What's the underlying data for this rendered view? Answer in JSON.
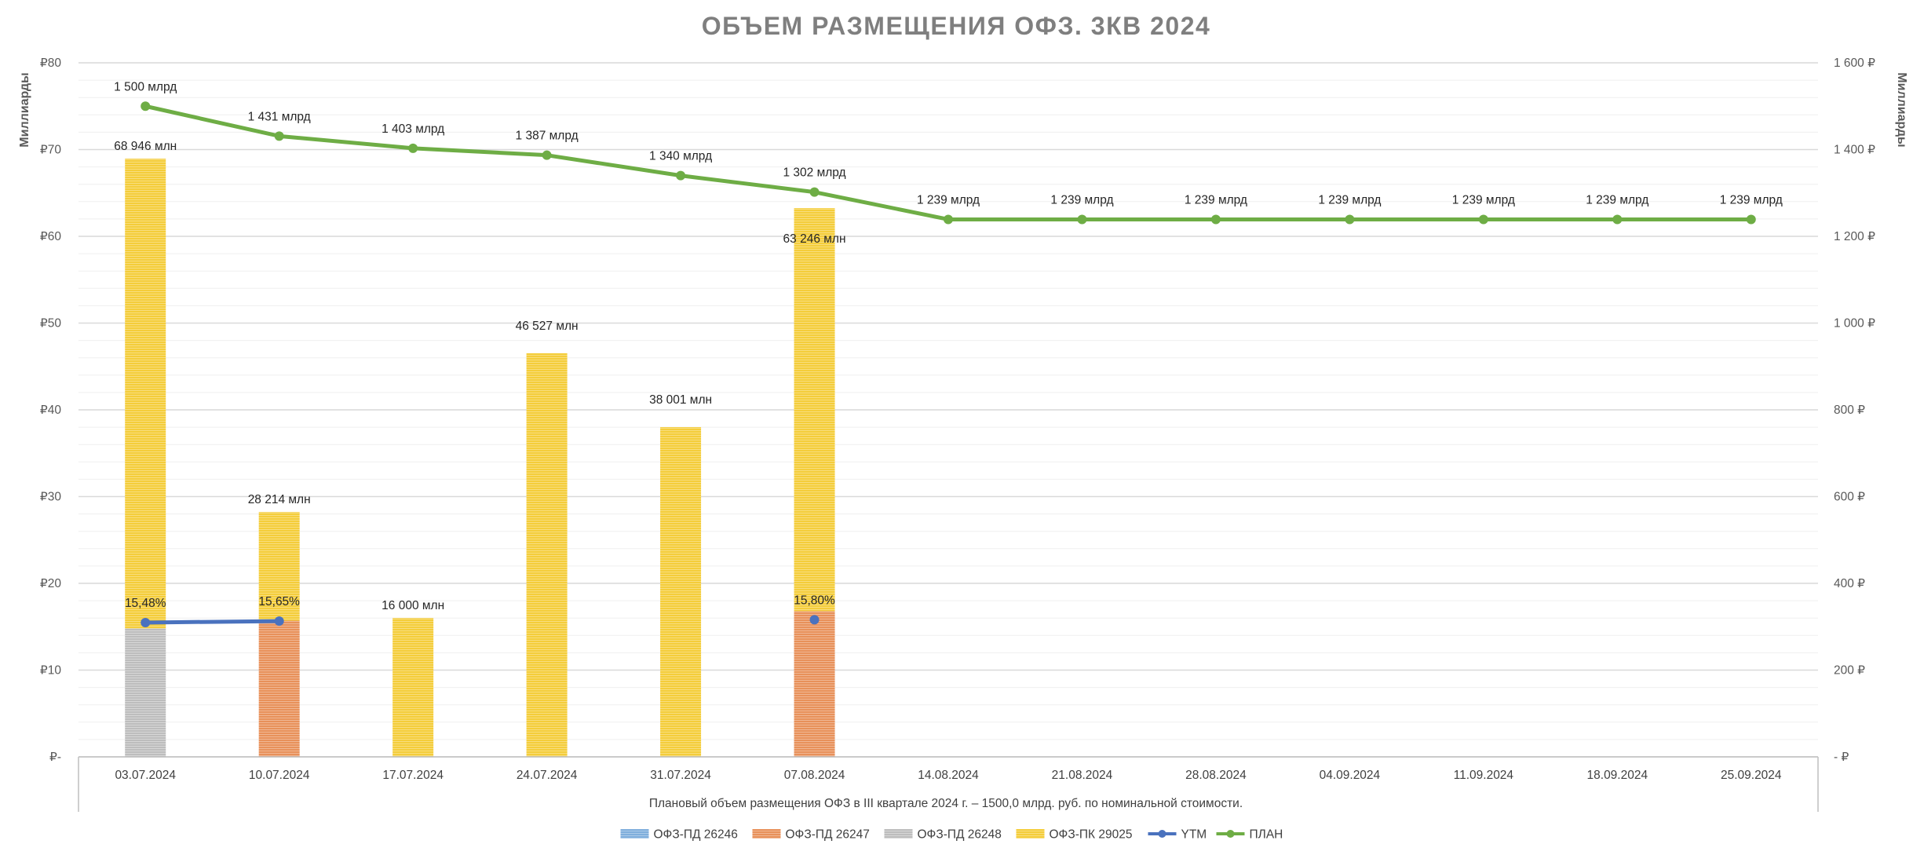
{
  "colors": {
    "pd26246": "#7FAEDC",
    "pd26247": "#E8915A",
    "pd26248": "#BDBDBD",
    "pk29025": "#F4CD3A",
    "ytm": "#4A72BE",
    "plan": "#6EAD45",
    "grid": "#D9D9D9",
    "minor_grid": "#EFEFEF",
    "axis_text": "#595959",
    "title": "#7F7F7F"
  },
  "chart_data": {
    "type": "bar",
    "stacked": true,
    "title": "ОБЪЕМ РАЗМЕЩЕНИЯ ОФЗ. 3КВ 2024",
    "ylabel_left": "Миллиарды",
    "ylabel_right": "Миллиарды",
    "xlabel": "Плановый объем размещения ОФЗ в III квартале 2024 г. – 1500,0 млрд. руб. по номинальной стоимости.",
    "ylim_left": [
      0,
      80
    ],
    "ylim_right": [
      0,
      1600
    ],
    "left_ticks": [
      0,
      10,
      20,
      30,
      40,
      50,
      60,
      70,
      80
    ],
    "left_tick_labels": [
      "₽-",
      "₽10",
      "₽20",
      "₽30",
      "₽40",
      "₽50",
      "₽60",
      "₽70",
      "₽80"
    ],
    "right_ticks": [
      0,
      200,
      400,
      600,
      800,
      1000,
      1200,
      1400,
      1600
    ],
    "right_tick_labels": [
      "-  ₽",
      "200 ₽",
      "400 ₽",
      "600 ₽",
      "800 ₽",
      "1 000 ₽",
      "1 200 ₽",
      "1 400 ₽",
      "1 600 ₽"
    ],
    "grid": true,
    "legend_position": "bottom",
    "categories": [
      "03.07.2024",
      "10.07.2024",
      "17.07.2024",
      "24.07.2024",
      "31.07.2024",
      "07.08.2024",
      "14.08.2024",
      "21.08.2024",
      "28.08.2024",
      "04.09.2024",
      "11.09.2024",
      "18.09.2024",
      "25.09.2024"
    ],
    "series": [
      {
        "name": "ОФЗ-ПД 26246",
        "kind": "bar",
        "color_key": "pd26246",
        "values": [
          0,
          0,
          0,
          0,
          0,
          0,
          null,
          null,
          null,
          null,
          null,
          null,
          null
        ]
      },
      {
        "name": "ОФЗ-ПД 26247",
        "kind": "bar",
        "color_key": "pd26247",
        "values": [
          0,
          15.7,
          0,
          0,
          0,
          16.8,
          null,
          null,
          null,
          null,
          null,
          null,
          null
        ]
      },
      {
        "name": "ОФЗ-ПД 26248",
        "kind": "bar",
        "color_key": "pd26248",
        "values": [
          14.8,
          0,
          0,
          0,
          0,
          0,
          null,
          null,
          null,
          null,
          null,
          null,
          null
        ]
      },
      {
        "name": "ОФЗ-ПК 29025",
        "kind": "bar",
        "color_key": "pk29025",
        "values": [
          54.146,
          12.514,
          16.0,
          46.527,
          38.001,
          46.446,
          null,
          null,
          null,
          null,
          null,
          null,
          null
        ]
      },
      {
        "name": "YTM",
        "kind": "line",
        "axis": "left",
        "color_key": "ytm",
        "values": [
          15.48,
          15.65,
          null,
          null,
          null,
          15.8,
          null,
          null,
          null,
          null,
          null,
          null,
          null
        ]
      },
      {
        "name": "ПЛАН",
        "kind": "line",
        "axis": "right",
        "color_key": "plan",
        "values": [
          1500,
          1431,
          1403,
          1387,
          1340,
          1302,
          1239,
          1239,
          1239,
          1239,
          1239,
          1239,
          1239
        ]
      }
    ],
    "bar_total_labels": [
      "68 946 млн",
      "28 214 млн",
      "16 000 млн",
      "46 527 млн",
      "38 001 млн",
      "63 246 млн",
      "",
      "",
      "",
      "",
      "",
      "",
      ""
    ],
    "ytm_labels": [
      "15,48%",
      "15,65%",
      "",
      "",
      "",
      "15,80%",
      "",
      "",
      "",
      "",
      "",
      "",
      ""
    ],
    "plan_labels": [
      "1 500 млрд",
      "1 431 млрд",
      "1 403 млрд",
      "1 387 млрд",
      "1 340 млрд",
      "1 302 млрд",
      "1 239 млрд",
      "1 239 млрд",
      "1 239 млрд",
      "1 239 млрд",
      "1 239 млрд",
      "1 239  млрд",
      "1 239 млрд"
    ]
  }
}
